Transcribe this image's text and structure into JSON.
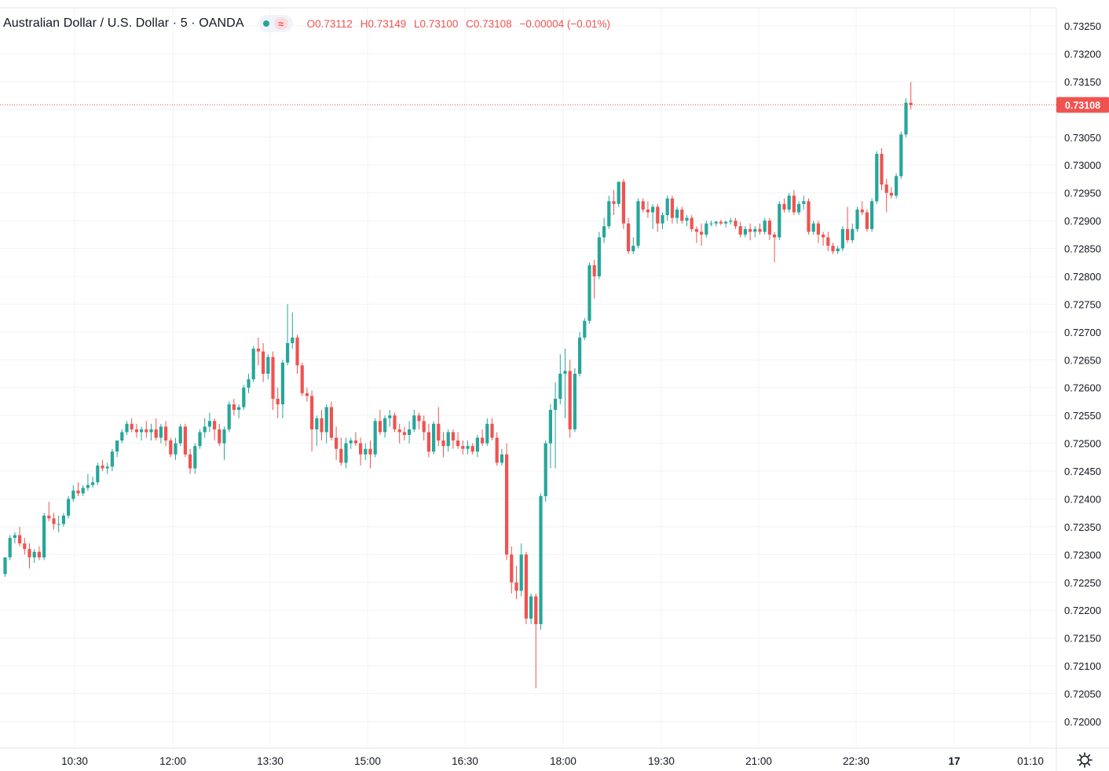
{
  "header": {
    "symbol_title": "Australian Dollar / U.S. Dollar · 5 · OANDA",
    "open_label": "O",
    "open_value": "0.73112",
    "high_label": "H",
    "high_value": "0.73149",
    "low_label": "L",
    "low_value": "0.73100",
    "close_label": "C",
    "close_value": "0.73108",
    "change_text": "−0.00004 (−0.01%)",
    "status_icons": [
      "market-open-dot-icon",
      "wave-icon"
    ]
  },
  "colors": {
    "up": "#26a69a",
    "down": "#ef5350",
    "grid": "#f0f3fa",
    "axis_text": "#131722",
    "last_price_bg": "#ef5350"
  },
  "chart_data": {
    "type": "candlestick",
    "instrument": "AUD/USD",
    "interval": "5",
    "x_ticks": [
      "10:30",
      "12:00",
      "13:30",
      "15:00",
      "16:30",
      "18:00",
      "19:30",
      "21:00",
      "22:30",
      "17",
      "01:10"
    ],
    "y_ticks": [
      "0.73250",
      "0.73200",
      "0.73150",
      "0.73100",
      "0.73050",
      "0.73000",
      "0.72950",
      "0.72900",
      "0.72850",
      "0.72800",
      "0.72750",
      "0.72700",
      "0.72650",
      "0.72600",
      "0.72550",
      "0.72500",
      "0.72450",
      "0.72400",
      "0.72350",
      "0.72300",
      "0.72250",
      "0.72200",
      "0.72150",
      "0.72100",
      "0.72050",
      "0.72000"
    ],
    "ylim": [
      0.71955,
      0.73275
    ],
    "last_price": "0.73108",
    "grid": true,
    "candles": [
      [
        0.72265,
        0.72295,
        0.7226,
        0.72295
      ],
      [
        0.72295,
        0.72335,
        0.7229,
        0.7233
      ],
      [
        0.7233,
        0.7234,
        0.7232,
        0.72335
      ],
      [
        0.72335,
        0.7235,
        0.72315,
        0.7232
      ],
      [
        0.7232,
        0.7233,
        0.723,
        0.7231
      ],
      [
        0.7231,
        0.7232,
        0.72275,
        0.72295
      ],
      [
        0.72295,
        0.7231,
        0.72285,
        0.72305
      ],
      [
        0.72305,
        0.72315,
        0.7229,
        0.72295
      ],
      [
        0.72295,
        0.72375,
        0.7229,
        0.7237
      ],
      [
        0.7237,
        0.72395,
        0.7236,
        0.72365
      ],
      [
        0.72365,
        0.72375,
        0.72345,
        0.72355
      ],
      [
        0.72355,
        0.7237,
        0.7234,
        0.72355
      ],
      [
        0.72355,
        0.72375,
        0.7235,
        0.7237
      ],
      [
        0.7237,
        0.72405,
        0.72365,
        0.724
      ],
      [
        0.724,
        0.72425,
        0.72395,
        0.72415
      ],
      [
        0.72415,
        0.7243,
        0.72405,
        0.7241
      ],
      [
        0.7241,
        0.72425,
        0.72405,
        0.7242
      ],
      [
        0.7242,
        0.72445,
        0.72415,
        0.72425
      ],
      [
        0.72425,
        0.7244,
        0.7242,
        0.7243
      ],
      [
        0.7243,
        0.72465,
        0.72425,
        0.7246
      ],
      [
        0.7246,
        0.7247,
        0.7245,
        0.72455
      ],
      [
        0.72455,
        0.72465,
        0.72445,
        0.72458
      ],
      [
        0.72458,
        0.7249,
        0.7245,
        0.72485
      ],
      [
        0.72485,
        0.72505,
        0.72475,
        0.72505
      ],
      [
        0.72505,
        0.72525,
        0.725,
        0.7252
      ],
      [
        0.7252,
        0.7254,
        0.72515,
        0.72535
      ],
      [
        0.72535,
        0.72545,
        0.7252,
        0.72525
      ],
      [
        0.72525,
        0.72535,
        0.7251,
        0.7252
      ],
      [
        0.7252,
        0.7253,
        0.72505,
        0.72525
      ],
      [
        0.72525,
        0.7254,
        0.7251,
        0.7252
      ],
      [
        0.7252,
        0.72535,
        0.72505,
        0.72525
      ],
      [
        0.72525,
        0.72545,
        0.72505,
        0.7251
      ],
      [
        0.7251,
        0.72535,
        0.725,
        0.7253
      ],
      [
        0.7253,
        0.7254,
        0.72495,
        0.72505
      ],
      [
        0.72505,
        0.7251,
        0.72475,
        0.7248
      ],
      [
        0.7248,
        0.7251,
        0.7247,
        0.725
      ],
      [
        0.725,
        0.72535,
        0.72495,
        0.7253
      ],
      [
        0.7253,
        0.72535,
        0.72475,
        0.7248
      ],
      [
        0.7248,
        0.7249,
        0.72445,
        0.72455
      ],
      [
        0.72455,
        0.725,
        0.72445,
        0.72495
      ],
      [
        0.72495,
        0.72525,
        0.7249,
        0.7252
      ],
      [
        0.7252,
        0.72545,
        0.7251,
        0.7253
      ],
      [
        0.7253,
        0.72555,
        0.7252,
        0.7254
      ],
      [
        0.7254,
        0.72545,
        0.72505,
        0.72525
      ],
      [
        0.72525,
        0.72535,
        0.72495,
        0.725
      ],
      [
        0.725,
        0.7253,
        0.7247,
        0.72525
      ],
      [
        0.72525,
        0.72575,
        0.7252,
        0.7257
      ],
      [
        0.7257,
        0.7258,
        0.7255,
        0.7256
      ],
      [
        0.7256,
        0.7257,
        0.72545,
        0.72565
      ],
      [
        0.72565,
        0.72605,
        0.7256,
        0.726
      ],
      [
        0.726,
        0.72625,
        0.7259,
        0.72615
      ],
      [
        0.72615,
        0.72675,
        0.7261,
        0.7267
      ],
      [
        0.7267,
        0.7269,
        0.7264,
        0.72665
      ],
      [
        0.72665,
        0.7268,
        0.7261,
        0.72625
      ],
      [
        0.72625,
        0.7266,
        0.72615,
        0.72655
      ],
      [
        0.72655,
        0.72665,
        0.7256,
        0.7258
      ],
      [
        0.7258,
        0.726,
        0.72545,
        0.7257
      ],
      [
        0.7257,
        0.7265,
        0.72545,
        0.72645
      ],
      [
        0.72645,
        0.7275,
        0.7264,
        0.7268
      ],
      [
        0.7268,
        0.72735,
        0.7267,
        0.7269
      ],
      [
        0.7269,
        0.72695,
        0.72625,
        0.7264
      ],
      [
        0.7264,
        0.72645,
        0.72585,
        0.7259
      ],
      [
        0.7259,
        0.726,
        0.72575,
        0.72585
      ],
      [
        0.72585,
        0.72595,
        0.72485,
        0.72525
      ],
      [
        0.72525,
        0.7255,
        0.72495,
        0.72545
      ],
      [
        0.72545,
        0.7256,
        0.72505,
        0.7252
      ],
      [
        0.7252,
        0.7257,
        0.725,
        0.72565
      ],
      [
        0.72565,
        0.72575,
        0.72505,
        0.7251
      ],
      [
        0.7251,
        0.7253,
        0.7247,
        0.7249
      ],
      [
        0.7249,
        0.7251,
        0.7246,
        0.72465
      ],
      [
        0.72465,
        0.7251,
        0.72455,
        0.725
      ],
      [
        0.725,
        0.7251,
        0.7249,
        0.72505
      ],
      [
        0.72505,
        0.7252,
        0.72495,
        0.725
      ],
      [
        0.725,
        0.7251,
        0.7246,
        0.7248
      ],
      [
        0.7248,
        0.725,
        0.7247,
        0.7249
      ],
      [
        0.7249,
        0.72505,
        0.72455,
        0.7248
      ],
      [
        0.7248,
        0.72545,
        0.72475,
        0.7254
      ],
      [
        0.7254,
        0.7256,
        0.72515,
        0.7252
      ],
      [
        0.7252,
        0.7255,
        0.7251,
        0.72545
      ],
      [
        0.72545,
        0.7256,
        0.7253,
        0.7255
      ],
      [
        0.7255,
        0.72555,
        0.7252,
        0.72525
      ],
      [
        0.72525,
        0.72535,
        0.725,
        0.7252
      ],
      [
        0.7252,
        0.7253,
        0.72505,
        0.72515
      ],
      [
        0.72515,
        0.7254,
        0.725,
        0.72525
      ],
      [
        0.72525,
        0.7256,
        0.7252,
        0.7255
      ],
      [
        0.7255,
        0.72555,
        0.72525,
        0.7254
      ],
      [
        0.7254,
        0.7255,
        0.72505,
        0.7252
      ],
      [
        0.7252,
        0.72535,
        0.72475,
        0.72485
      ],
      [
        0.72485,
        0.7254,
        0.7248,
        0.72535
      ],
      [
        0.72535,
        0.72565,
        0.72495,
        0.72505
      ],
      [
        0.72505,
        0.7252,
        0.72475,
        0.72495
      ],
      [
        0.72495,
        0.72525,
        0.72485,
        0.7252
      ],
      [
        0.7252,
        0.72525,
        0.7249,
        0.72505
      ],
      [
        0.72505,
        0.7252,
        0.7249,
        0.72495
      ],
      [
        0.72495,
        0.72505,
        0.7248,
        0.7249
      ],
      [
        0.7249,
        0.72505,
        0.7248,
        0.72495
      ],
      [
        0.72495,
        0.725,
        0.7248,
        0.72485
      ],
      [
        0.72485,
        0.72515,
        0.72475,
        0.7251
      ],
      [
        0.7251,
        0.72525,
        0.72495,
        0.725
      ],
      [
        0.725,
        0.72545,
        0.72495,
        0.72535
      ],
      [
        0.72535,
        0.72545,
        0.72505,
        0.7251
      ],
      [
        0.7251,
        0.7252,
        0.7246,
        0.72465
      ],
      [
        0.72465,
        0.7249,
        0.7246,
        0.7248
      ],
      [
        0.7248,
        0.725,
        0.7229,
        0.723
      ],
      [
        0.723,
        0.72315,
        0.7223,
        0.7225
      ],
      [
        0.7225,
        0.7228,
        0.7222,
        0.72235
      ],
      [
        0.72235,
        0.7232,
        0.72225,
        0.723
      ],
      [
        0.723,
        0.72305,
        0.72175,
        0.72185
      ],
      [
        0.72185,
        0.7223,
        0.72175,
        0.72225
      ],
      [
        0.72225,
        0.7223,
        0.7206,
        0.72175
      ],
      [
        0.72175,
        0.7241,
        0.72165,
        0.72405
      ],
      [
        0.72405,
        0.72505,
        0.72395,
        0.725
      ],
      [
        0.725,
        0.7257,
        0.72455,
        0.7256
      ],
      [
        0.7256,
        0.7261,
        0.72455,
        0.7258
      ],
      [
        0.7258,
        0.7266,
        0.7257,
        0.72625
      ],
      [
        0.72625,
        0.7267,
        0.72545,
        0.7263
      ],
      [
        0.7263,
        0.7265,
        0.7251,
        0.72525
      ],
      [
        0.72525,
        0.72635,
        0.7252,
        0.72625
      ],
      [
        0.72625,
        0.727,
        0.7262,
        0.7269
      ],
      [
        0.7269,
        0.72725,
        0.72685,
        0.7272
      ],
      [
        0.7272,
        0.72825,
        0.72715,
        0.7282
      ],
      [
        0.7282,
        0.7283,
        0.7276,
        0.728
      ],
      [
        0.728,
        0.7288,
        0.72795,
        0.7287
      ],
      [
        0.7287,
        0.72905,
        0.7286,
        0.7289
      ],
      [
        0.7289,
        0.72945,
        0.72885,
        0.72935
      ],
      [
        0.72935,
        0.72955,
        0.7291,
        0.7293
      ],
      [
        0.7293,
        0.7297,
        0.72925,
        0.7297
      ],
      [
        0.7297,
        0.72975,
        0.72885,
        0.72895
      ],
      [
        0.72895,
        0.72905,
        0.7284,
        0.72845
      ],
      [
        0.72845,
        0.7287,
        0.7284,
        0.72855
      ],
      [
        0.72855,
        0.7294,
        0.7285,
        0.72935
      ],
      [
        0.72935,
        0.7294,
        0.72915,
        0.7292
      ],
      [
        0.7292,
        0.72935,
        0.72905,
        0.72915
      ],
      [
        0.72915,
        0.7293,
        0.72885,
        0.72925
      ],
      [
        0.72925,
        0.7293,
        0.7288,
        0.72895
      ],
      [
        0.72895,
        0.72915,
        0.72885,
        0.7291
      ],
      [
        0.7291,
        0.72945,
        0.729,
        0.7294
      ],
      [
        0.7294,
        0.72945,
        0.72895,
        0.72905
      ],
      [
        0.72905,
        0.72925,
        0.72895,
        0.7292
      ],
      [
        0.7292,
        0.72925,
        0.72895,
        0.729
      ],
      [
        0.729,
        0.7291,
        0.7289,
        0.72905
      ],
      [
        0.72905,
        0.7291,
        0.7288,
        0.72885
      ],
      [
        0.72885,
        0.7289,
        0.7286,
        0.7288
      ],
      [
        0.7288,
        0.72895,
        0.72855,
        0.72875
      ],
      [
        0.72875,
        0.729,
        0.7287,
        0.72895
      ],
      [
        0.72895,
        0.729,
        0.7289,
        0.72895
      ],
      [
        0.72895,
        0.729,
        0.7289,
        0.72898
      ],
      [
        0.72898,
        0.72902,
        0.72892,
        0.72895
      ],
      [
        0.72895,
        0.729,
        0.72888,
        0.72898
      ],
      [
        0.72898,
        0.72905,
        0.72893,
        0.729
      ],
      [
        0.729,
        0.72905,
        0.72885,
        0.7289
      ],
      [
        0.7289,
        0.72898,
        0.7287,
        0.72875
      ],
      [
        0.72875,
        0.7289,
        0.7287,
        0.72885
      ],
      [
        0.72885,
        0.72895,
        0.72865,
        0.7288
      ],
      [
        0.7288,
        0.7289,
        0.7287,
        0.72885
      ],
      [
        0.72885,
        0.72895,
        0.72875,
        0.7288
      ],
      [
        0.7288,
        0.72905,
        0.72875,
        0.729
      ],
      [
        0.729,
        0.72905,
        0.72865,
        0.72875
      ],
      [
        0.72875,
        0.7288,
        0.72825,
        0.7287
      ],
      [
        0.7287,
        0.72935,
        0.72865,
        0.7293
      ],
      [
        0.7293,
        0.7294,
        0.72915,
        0.7292
      ],
      [
        0.7292,
        0.7295,
        0.72915,
        0.72945
      ],
      [
        0.72945,
        0.72955,
        0.7291,
        0.72915
      ],
      [
        0.72915,
        0.72935,
        0.7291,
        0.7293
      ],
      [
        0.7293,
        0.72945,
        0.7292,
        0.72935
      ],
      [
        0.72935,
        0.7294,
        0.72875,
        0.7288
      ],
      [
        0.7288,
        0.729,
        0.72875,
        0.72895
      ],
      [
        0.72895,
        0.729,
        0.7286,
        0.72875
      ],
      [
        0.72875,
        0.7288,
        0.72855,
        0.7287
      ],
      [
        0.7287,
        0.7288,
        0.72845,
        0.72855
      ],
      [
        0.72855,
        0.7286,
        0.7284,
        0.72845
      ],
      [
        0.72845,
        0.72855,
        0.7284,
        0.7285
      ],
      [
        0.7285,
        0.7289,
        0.72845,
        0.72885
      ],
      [
        0.72885,
        0.72925,
        0.7286,
        0.72865
      ],
      [
        0.72865,
        0.72895,
        0.7286,
        0.72885
      ],
      [
        0.72885,
        0.72925,
        0.7288,
        0.7292
      ],
      [
        0.7292,
        0.72935,
        0.7291,
        0.72915
      ],
      [
        0.72915,
        0.7292,
        0.7288,
        0.72885
      ],
      [
        0.72885,
        0.7294,
        0.7288,
        0.72935
      ],
      [
        0.72935,
        0.73025,
        0.7293,
        0.7302
      ],
      [
        0.7302,
        0.7303,
        0.72955,
        0.72965
      ],
      [
        0.72965,
        0.72975,
        0.72915,
        0.7295
      ],
      [
        0.7295,
        0.7296,
        0.7294,
        0.72945
      ],
      [
        0.72945,
        0.72985,
        0.7294,
        0.7298
      ],
      [
        0.7298,
        0.7306,
        0.72975,
        0.73055
      ],
      [
        0.73055,
        0.7312,
        0.7305,
        0.73112
      ],
      [
        0.73112,
        0.73149,
        0.731,
        0.73108
      ]
    ]
  },
  "toolbar": {
    "settings_icon": "gear-icon"
  }
}
